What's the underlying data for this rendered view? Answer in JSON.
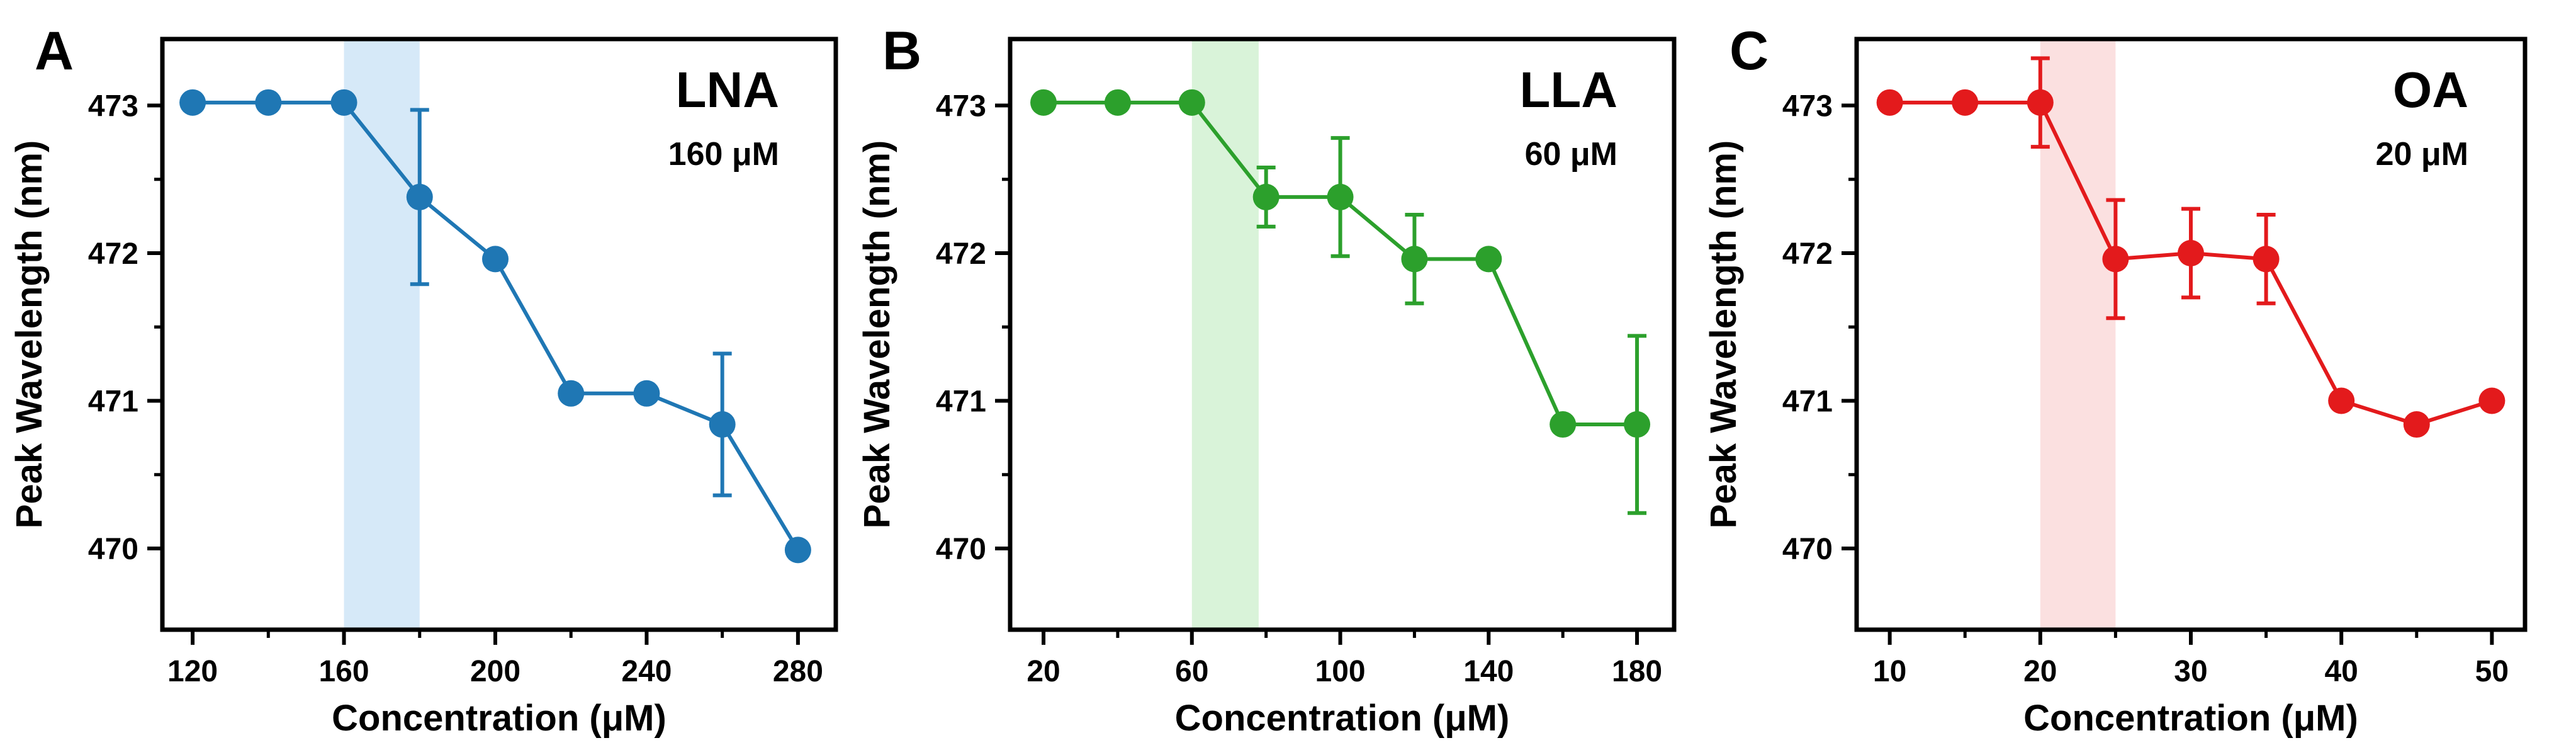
{
  "chart_data": [
    {
      "type": "line",
      "panel": "A",
      "xlabel": "Concentration (μM)",
      "ylabel": "Peak Wavelength (nm)",
      "annotation_name": "LNA",
      "annotation_conc": "160 μM",
      "color": "#1f77b4",
      "shade_color": "#d6e9f8",
      "shade_range": [
        160,
        180
      ],
      "xlim": [
        112,
        290
      ],
      "ylim": [
        469.45,
        473.45
      ],
      "xticks": [
        120,
        160,
        200,
        240,
        280
      ],
      "xminor": [
        140,
        180,
        220,
        260
      ],
      "yticks": [
        470,
        471,
        472,
        473
      ],
      "x": [
        120,
        140,
        160,
        180,
        200,
        220,
        240,
        260,
        280
      ],
      "y": [
        473.02,
        473.02,
        473.02,
        472.38,
        471.96,
        471.05,
        471.05,
        470.84,
        469.99
      ],
      "err": [
        0,
        0,
        0,
        0.59,
        0,
        0,
        0,
        0.48,
        0
      ]
    },
    {
      "type": "line",
      "panel": "B",
      "xlabel": "Concentration (μM)",
      "ylabel": "Peak Wavelength (nm)",
      "annotation_name": "LLA",
      "annotation_conc": "60 μM",
      "color": "#2ca02c",
      "shade_color": "#d9f3d9",
      "shade_range": [
        60,
        78
      ],
      "xlim": [
        11,
        190
      ],
      "ylim": [
        469.45,
        473.45
      ],
      "xticks": [
        20,
        60,
        100,
        140,
        180
      ],
      "xminor": [
        40,
        80,
        120,
        160
      ],
      "yticks": [
        470,
        471,
        472,
        473
      ],
      "x": [
        20,
        40,
        60,
        80,
        100,
        120,
        140,
        160,
        180
      ],
      "y": [
        473.02,
        473.02,
        473.02,
        472.38,
        472.38,
        471.96,
        471.96,
        470.84,
        470.84
      ],
      "err": [
        0,
        0,
        0,
        0.2,
        0.4,
        0.3,
        0,
        0,
        0.6
      ]
    },
    {
      "type": "line",
      "panel": "C",
      "xlabel": "Concentration (μM)",
      "ylabel": "Peak Wavelength (nm)",
      "annotation_name": "OA",
      "annotation_conc": "20 μM",
      "color": "#e31a1c",
      "shade_color": "#fbe0e0",
      "shade_range": [
        20,
        25
      ],
      "xlim": [
        7.8,
        52.2
      ],
      "ylim": [
        469.45,
        473.45
      ],
      "xticks": [
        10,
        20,
        30,
        40,
        50
      ],
      "xminor": [
        15,
        25,
        35,
        45
      ],
      "yticks": [
        470,
        471,
        472,
        473
      ],
      "x": [
        10,
        15,
        20,
        25,
        30,
        35,
        40,
        45,
        50
      ],
      "y": [
        473.02,
        473.02,
        473.02,
        471.96,
        472.0,
        471.96,
        471.0,
        470.84,
        471.0
      ],
      "err": [
        0,
        0,
        0.3,
        0.4,
        0.3,
        0.3,
        0,
        0,
        0
      ]
    }
  ]
}
